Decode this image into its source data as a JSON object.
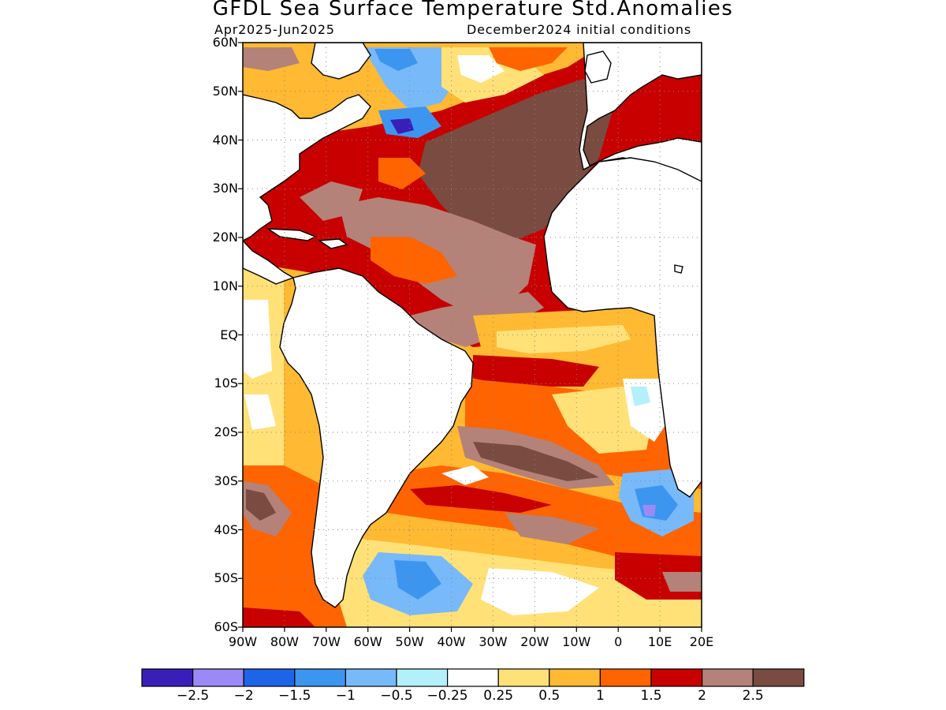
{
  "title": "GFDL Sea Surface Temperature Std.Anomalies",
  "period_label": "Apr2025-Jun2025",
  "init_label": "December2024 initial conditions",
  "map": {
    "lon_range": [
      -90,
      20
    ],
    "lat_range": [
      -60,
      60
    ],
    "land_color": "#ffffff",
    "coastline_color": "#000000",
    "gridlines": "dotted"
  },
  "lat_labels": [
    "60N",
    "50N",
    "40N",
    "30N",
    "20N",
    "10N",
    "EQ",
    "10S",
    "20S",
    "30S",
    "40S",
    "50S",
    "60S"
  ],
  "lon_labels": [
    "90W",
    "80W",
    "70W",
    "60W",
    "50W",
    "40W",
    "30W",
    "20W",
    "10W",
    "0",
    "10E",
    "20E"
  ],
  "colorbar": {
    "colors": [
      "#3a1eb8",
      "#9b8af5",
      "#1e64e8",
      "#3c96f0",
      "#78b9fa",
      "#b4f0fa",
      "#ffffff",
      "#ffe178",
      "#ffb932",
      "#ff6400",
      "#c80000",
      "#b48278",
      "#7a4b41"
    ],
    "tick_labels": [
      "-2.5",
      "-2",
      "-1.5",
      "-1",
      "-0.5",
      "-0.25",
      "0.25",
      "0.5",
      "1",
      "1.5",
      "2",
      "2.5"
    ]
  }
}
